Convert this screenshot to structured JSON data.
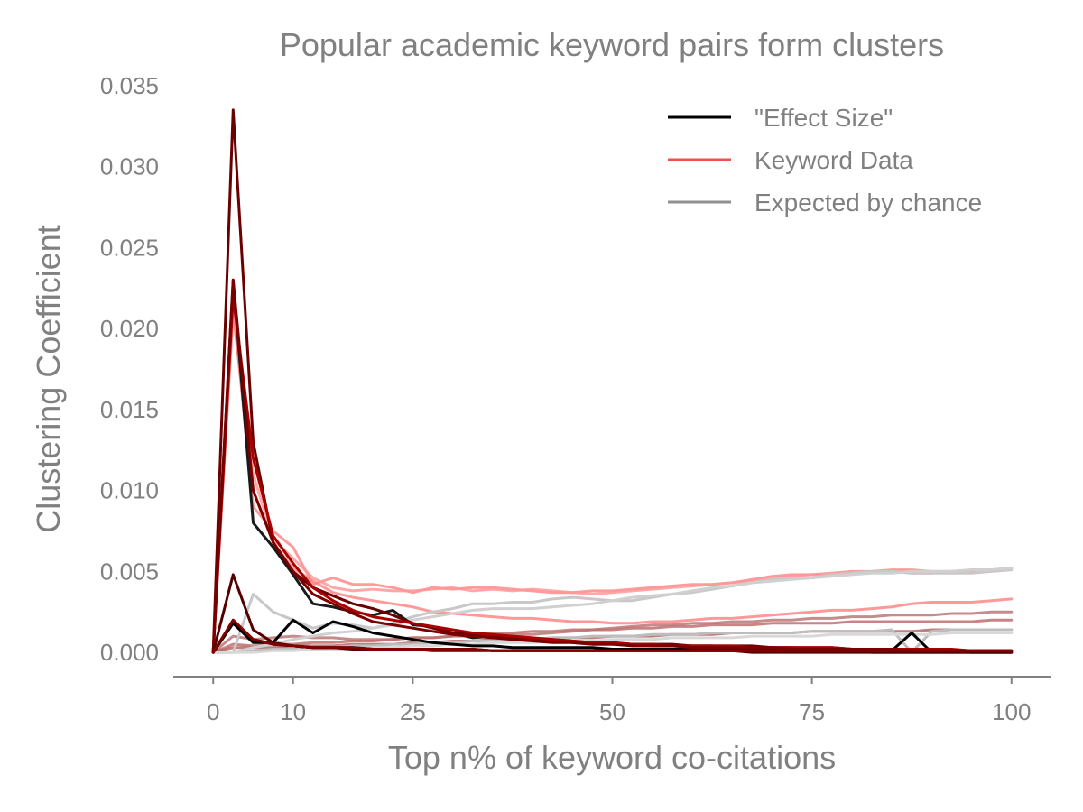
{
  "chart_data": {
    "type": "line",
    "title": "Popular academic keyword pairs form clusters",
    "xlabel": "Top n% of keyword co-citations",
    "ylabel": "Clustering Coefficient",
    "xlim": [
      -5,
      105
    ],
    "ylim": [
      -0.0015,
      0.035
    ],
    "xticks": [
      0,
      10,
      25,
      50,
      75,
      100
    ],
    "yticks": [
      0.0,
      0.005,
      0.01,
      0.015,
      0.02,
      0.025,
      0.03,
      0.035
    ],
    "ytick_labels": [
      "0.000",
      "0.005",
      "0.010",
      "0.015",
      "0.020",
      "0.025",
      "0.030",
      "0.035"
    ],
    "grid": false,
    "legend_position": "top-right",
    "legend": [
      {
        "label": "\"Effect Size\"",
        "color": "#000000"
      },
      {
        "label": "Keyword Data",
        "color": "#f05050"
      },
      {
        "label": "Expected by chance",
        "color": "#909090"
      }
    ],
    "x": [
      0,
      2.5,
      5,
      7.5,
      10,
      12.5,
      15,
      17.5,
      20,
      22.5,
      25,
      27.5,
      30,
      32.5,
      35,
      37.5,
      40,
      42.5,
      45,
      47.5,
      50,
      52.5,
      55,
      57.5,
      60,
      62.5,
      65,
      67.5,
      70,
      72.5,
      75,
      77.5,
      80,
      82.5,
      85,
      87.5,
      90,
      92.5,
      95,
      97.5,
      100
    ],
    "series": [
      {
        "group": "keyword",
        "color": "#ff9090",
        "opacity": 0.9,
        "values": [
          0,
          0.0215,
          0.009,
          0.0075,
          0.0065,
          0.0042,
          0.0046,
          0.0042,
          0.0042,
          0.004,
          0.0037,
          0.004,
          0.0039,
          0.004,
          0.004,
          0.0039,
          0.0038,
          0.0037,
          0.0037,
          0.0038,
          0.0038,
          0.0039,
          0.004,
          0.0041,
          0.0042,
          0.0042,
          0.0043,
          0.0045,
          0.0047,
          0.0048,
          0.0048,
          0.0049,
          0.005,
          0.005,
          0.0051,
          0.0051,
          0.005,
          0.005,
          0.0051,
          0.0051,
          0.0052
        ]
      },
      {
        "group": "keyword",
        "color": "#ff9999",
        "opacity": 0.85,
        "values": [
          0,
          0.0225,
          0.011,
          0.007,
          0.0058,
          0.0046,
          0.004,
          0.0038,
          0.0039,
          0.0038,
          0.0038,
          0.0039,
          0.004,
          0.0038,
          0.0039,
          0.0038,
          0.0039,
          0.0038,
          0.0037,
          0.0036,
          0.0037,
          0.0038,
          0.0039,
          0.004,
          0.0041,
          0.0042,
          0.0043,
          0.0044,
          0.0046,
          0.0047,
          0.0048,
          0.0048,
          0.0049,
          0.005,
          0.005,
          0.0049,
          0.0049,
          0.005,
          0.005,
          0.0051,
          0.0052
        ]
      },
      {
        "group": "keyword",
        "color": "#ff8080",
        "opacity": 0.8,
        "values": [
          0,
          0.021,
          0.01,
          0.0068,
          0.0052,
          0.0044,
          0.0037,
          0.0034,
          0.0032,
          0.003,
          0.0028,
          0.0025,
          0.0024,
          0.0023,
          0.0022,
          0.0021,
          0.0021,
          0.002,
          0.0019,
          0.0019,
          0.0018,
          0.0018,
          0.0019,
          0.0019,
          0.002,
          0.0021,
          0.0021,
          0.0022,
          0.0023,
          0.0024,
          0.0025,
          0.0026,
          0.0026,
          0.0027,
          0.0028,
          0.003,
          0.0031,
          0.0031,
          0.0031,
          0.0032,
          0.0033
        ]
      },
      {
        "group": "keyword",
        "color": "#c08080",
        "opacity": 0.9,
        "values": [
          0,
          0.001,
          0.0008,
          0.0009,
          0.001,
          0.0009,
          0.0009,
          0.0008,
          0.0008,
          0.0008,
          0.0009,
          0.0009,
          0.001,
          0.001,
          0.0011,
          0.0011,
          0.0011,
          0.0012,
          0.0013,
          0.0014,
          0.0015,
          0.0016,
          0.0017,
          0.0017,
          0.0018,
          0.0018,
          0.0019,
          0.0019,
          0.002,
          0.002,
          0.0021,
          0.0021,
          0.0022,
          0.0022,
          0.0023,
          0.0023,
          0.0023,
          0.0024,
          0.0024,
          0.0025,
          0.0025
        ]
      },
      {
        "group": "keyword",
        "color": "#c07070",
        "opacity": 0.85,
        "values": [
          0,
          0.0005,
          0.0004,
          0.0005,
          0.0005,
          0.0006,
          0.0006,
          0.0007,
          0.0007,
          0.0008,
          0.0009,
          0.0009,
          0.001,
          0.0011,
          0.0012,
          0.0012,
          0.0013,
          0.0013,
          0.0014,
          0.0014,
          0.0014,
          0.0015,
          0.0015,
          0.0016,
          0.0016,
          0.0017,
          0.0017,
          0.0017,
          0.0018,
          0.0018,
          0.0018,
          0.0018,
          0.0019,
          0.0019,
          0.0019,
          0.0019,
          0.0019,
          0.0019,
          0.0019,
          0.002,
          0.002
        ]
      },
      {
        "group": "keyword",
        "color": "#b06060",
        "opacity": 0.8,
        "values": [
          0,
          0.0003,
          0.0003,
          0.0003,
          0.0004,
          0.0004,
          0.0004,
          0.0005,
          0.0005,
          0.0005,
          0.0006,
          0.0006,
          0.0007,
          0.0007,
          0.0008,
          0.0008,
          0.0008,
          0.0009,
          0.0009,
          0.0009,
          0.001,
          0.001,
          0.001,
          0.0011,
          0.0011,
          0.0011,
          0.0012,
          0.0012,
          0.0012,
          0.0012,
          0.0013,
          0.0013,
          0.0013,
          0.0013,
          0.0013,
          0.0013,
          0.0014,
          0.0014,
          0.0014,
          0.0014,
          0.0014
        ]
      },
      {
        "group": "chance",
        "color": "#c8c8c8",
        "opacity": 1.0,
        "values": [
          0,
          0.0,
          0.0036,
          0.0025,
          0.002,
          0.0015,
          0.0018,
          0.0017,
          0.0015,
          0.0018,
          0.0022,
          0.0025,
          0.0027,
          0.003,
          0.003,
          0.0031,
          0.0031,
          0.0033,
          0.0034,
          0.0033,
          0.0032,
          0.0032,
          0.0034,
          0.0036,
          0.0037,
          0.0039,
          0.0041,
          0.0043,
          0.0045,
          0.0046,
          0.0046,
          0.0048,
          0.0049,
          0.005,
          0.005,
          0.0049,
          0.0049,
          0.0049,
          0.0049,
          0.005,
          0.0051
        ]
      },
      {
        "group": "chance",
        "color": "#d0d0d0",
        "opacity": 1.0,
        "values": [
          0,
          0.0,
          0.0003,
          0.0005,
          0.0008,
          0.001,
          0.0012,
          0.0013,
          0.0015,
          0.0017,
          0.002,
          0.0022,
          0.0024,
          0.0026,
          0.0027,
          0.0027,
          0.0027,
          0.0028,
          0.0029,
          0.003,
          0.0032,
          0.0034,
          0.0035,
          0.0036,
          0.0038,
          0.004,
          0.0041,
          0.0043,
          0.0044,
          0.0045,
          0.0046,
          0.0047,
          0.0048,
          0.0049,
          0.0049,
          0.005,
          0.005,
          0.005,
          0.0051,
          0.0051,
          0.0052
        ]
      },
      {
        "group": "chance",
        "color": "#bdbdbd",
        "opacity": 1.0,
        "values": [
          0,
          0.0,
          0.0001,
          0.0002,
          0.0002,
          0.0003,
          0.0003,
          0.0004,
          0.0004,
          0.0005,
          0.0005,
          0.0006,
          0.0006,
          0.0007,
          0.0007,
          0.0008,
          0.0008,
          0.0009,
          0.0009,
          0.001,
          0.001,
          0.001,
          0.0011,
          0.0011,
          0.0011,
          0.0012,
          0.0012,
          0.0012,
          0.0012,
          0.0012,
          0.0013,
          0.0013,
          0.0013,
          0.0013,
          0.0014,
          0.0,
          0.0013,
          0.0014,
          0.0014,
          0.0014,
          0.0014
        ]
      },
      {
        "group": "chance",
        "color": "#d8d8d8",
        "opacity": 1.0,
        "values": [
          0,
          0.0,
          0.0,
          0.0001,
          0.0001,
          0.0002,
          0.0002,
          0.0002,
          0.0003,
          0.0003,
          0.0004,
          0.0004,
          0.0005,
          0.0005,
          0.0006,
          0.0006,
          0.0006,
          0.0007,
          0.0007,
          0.0007,
          0.0008,
          0.0008,
          0.0008,
          0.0009,
          0.0009,
          0.0009,
          0.0009,
          0.001,
          0.001,
          0.001,
          0.001,
          0.0011,
          0.0011,
          0.0011,
          0.0011,
          0.0011,
          0.0011,
          0.0012,
          0.0012,
          0.0012,
          0.0012
        ]
      },
      {
        "group": "effect",
        "color": "#000000",
        "opacity": 1.0,
        "values": [
          0,
          0.0018,
          0.0006,
          0.0006,
          0.002,
          0.0012,
          0.0019,
          0.0016,
          0.0012,
          0.001,
          0.0008,
          0.0006,
          0.0005,
          0.0004,
          0.0004,
          0.0003,
          0.0003,
          0.0003,
          0.0003,
          0.0003,
          0.0002,
          0.0002,
          0.0002,
          0.0002,
          0.0002,
          0.0002,
          0.0002,
          0.0002,
          0.0002,
          0.0001,
          0.0001,
          0.0001,
          0.0001,
          0.0001,
          0.0001,
          0.0012,
          0.0,
          0.0001,
          0.0,
          0.0,
          0.0
        ]
      },
      {
        "group": "effect",
        "color": "#1a1a1a",
        "opacity": 1.0,
        "values": [
          0,
          0.023,
          0.008,
          0.0065,
          0.0048,
          0.003,
          0.0028,
          0.0025,
          0.0023,
          0.0026,
          0.0017,
          0.0016,
          0.0012,
          0.0009,
          0.001,
          0.0008,
          0.0008,
          0.0007,
          0.0006,
          0.0005,
          0.0005,
          0.0005,
          0.0004,
          0.0004,
          0.0004,
          0.0004,
          0.0003,
          0.0003,
          0.0003,
          0.0003,
          0.0002,
          0.0002,
          0.0002,
          0.0002,
          0.0002,
          0.0002,
          0.0001,
          0.0001,
          0.0001,
          0.0001,
          0.0001
        ]
      },
      {
        "group": "effect",
        "color": "#000000",
        "opacity": 1.0,
        "values": [
          0,
          0.0018,
          0.0008,
          0.0005,
          0.0004,
          0.0003,
          0.0003,
          0.0003,
          0.0002,
          0.0002,
          0.0002,
          0.0002,
          0.0002,
          0.0002,
          0.0001,
          0.0001,
          0.0001,
          0.0001,
          0.0001,
          0.0001,
          0.0001,
          0.0001,
          0.0001,
          0.0001,
          0.0001,
          0.0001,
          0.0001,
          0.0001,
          0.0001,
          0.0001,
          0.0001,
          0.0001,
          0.0001,
          0.0,
          0.0,
          0.0,
          0.0,
          0.0,
          0.0,
          0.0,
          0.0
        ]
      },
      {
        "group": "dark-keyword",
        "color": "#6b0000",
        "opacity": 1.0,
        "values": [
          0,
          0.0335,
          0.013,
          0.0068,
          0.005,
          0.004,
          0.0035,
          0.003,
          0.0027,
          0.0023,
          0.0018,
          0.0015,
          0.0012,
          0.0011,
          0.001,
          0.0009,
          0.0008,
          0.0008,
          0.0007,
          0.0006,
          0.0006,
          0.0005,
          0.0005,
          0.0005,
          0.0004,
          0.0004,
          0.0004,
          0.0004,
          0.0003,
          0.0003,
          0.0003,
          0.0003,
          0.0002,
          0.0002,
          0.0002,
          0.0002,
          0.0002,
          0.0001,
          0.0001,
          0.0001,
          0.0001
        ]
      },
      {
        "group": "dark-keyword",
        "color": "#aa0000",
        "opacity": 1.0,
        "values": [
          0,
          0.022,
          0.012,
          0.0072,
          0.0055,
          0.004,
          0.0032,
          0.0026,
          0.0022,
          0.002,
          0.0018,
          0.0016,
          0.0014,
          0.0012,
          0.0011,
          0.001,
          0.0009,
          0.0008,
          0.0007,
          0.0006,
          0.0006,
          0.0005,
          0.0005,
          0.0004,
          0.0004,
          0.0004,
          0.0004,
          0.0003,
          0.0003,
          0.0003,
          0.0003,
          0.0003,
          0.0002,
          0.0002,
          0.0002,
          0.0002,
          0.0002,
          0.0002,
          0.0001,
          0.0001,
          0.0001
        ]
      },
      {
        "group": "dark-keyword",
        "color": "#7a0000",
        "opacity": 1.0,
        "values": [
          0,
          0.023,
          0.01,
          0.0068,
          0.005,
          0.0036,
          0.003,
          0.0024,
          0.0019,
          0.0017,
          0.0015,
          0.0013,
          0.0011,
          0.001,
          0.0009,
          0.0008,
          0.0007,
          0.0006,
          0.0006,
          0.0005,
          0.0005,
          0.0004,
          0.0004,
          0.0004,
          0.0003,
          0.0003,
          0.0003,
          0.0003,
          0.0003,
          0.0002,
          0.0002,
          0.0002,
          0.0002,
          0.0002,
          0.0002,
          0.0001,
          0.0001,
          0.0001,
          0.0001,
          0.0001,
          0.0001
        ]
      },
      {
        "group": "dark-keyword",
        "color": "#550000",
        "opacity": 1.0,
        "values": [
          0,
          0.0048,
          0.0014,
          0.0006,
          0.0004,
          0.0003,
          0.0003,
          0.0002,
          0.0002,
          0.0002,
          0.0002,
          0.0001,
          0.0001,
          0.0001,
          0.0001,
          0.0001,
          0.0001,
          0.0001,
          0.0001,
          0.0001,
          0.0001,
          0.0001,
          0.0001,
          0.0001,
          0.0001,
          0.0001,
          0.0001,
          0.0,
          0.0,
          0.0,
          0.0,
          0.0,
          0.0,
          0.0,
          0.0,
          0.0,
          0.0,
          0.0,
          0.0,
          0.0,
          0.0
        ]
      },
      {
        "group": "dark-keyword",
        "color": "#800000",
        "opacity": 1.0,
        "values": [
          0,
          0.002,
          0.0008,
          0.0005,
          0.0004,
          0.0003,
          0.0003,
          0.0003,
          0.0002,
          0.0002,
          0.0002,
          0.0002,
          0.0002,
          0.0002,
          0.0001,
          0.0001,
          0.0001,
          0.0001,
          0.0001,
          0.0001,
          0.0001,
          0.0001,
          0.0001,
          0.0001,
          0.0001,
          0.0001,
          0.0001,
          0.0001,
          0.0001,
          0.0001,
          0.0001,
          0.0001,
          0.0001,
          0.0001,
          0.0001,
          0.0001,
          0.0001,
          0.0001,
          0.0001,
          0.0001,
          0.0001
        ]
      }
    ]
  }
}
